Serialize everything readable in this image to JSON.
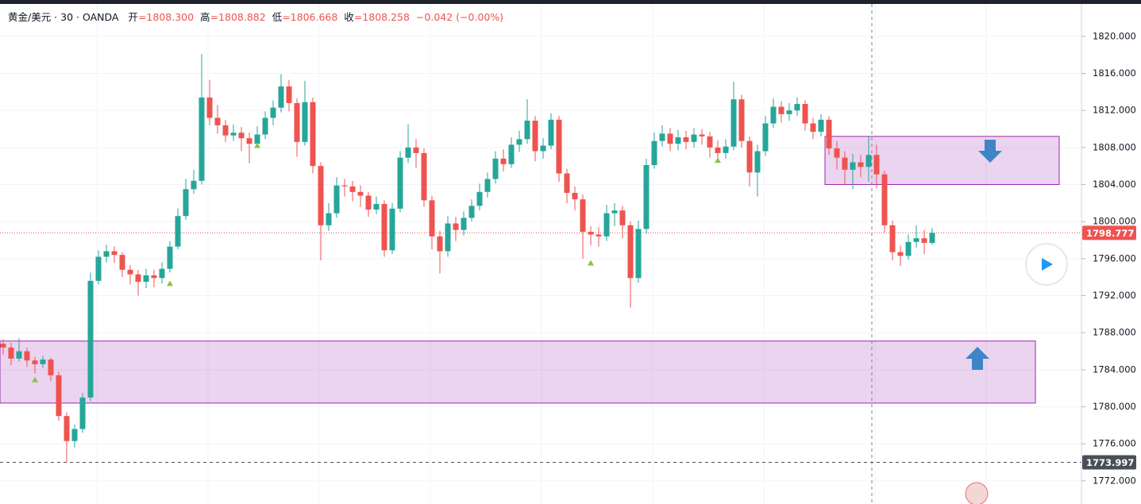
{
  "chart_data": {
    "type": "candlestick",
    "header": {
      "symbol": "黄金/美元 · 30 · OANDA",
      "fields": [
        {
          "name": "开",
          "text": "=1808.300"
        },
        {
          "name": "高",
          "text": "=1808.882"
        },
        {
          "name": "低",
          "text": "=1806.668"
        },
        {
          "name": "收",
          "text": "=1808.258"
        }
      ],
      "change": "−0.042 (−0.00%)"
    },
    "up_color": "#26a69a",
    "down_color": "#ef5350",
    "open": [
      1786.8,
      1786.4,
      1785.2,
      1786.0,
      1785.0,
      1784.6,
      1785.1,
      1783.4,
      1779.0,
      1776.3,
      1777.6,
      1781.0,
      1793.6,
      1796.2,
      1796.8,
      1796.4,
      1794.8,
      1794.3,
      1793.5,
      1794.2,
      1793.9,
      1794.9,
      1797.3,
      1800.6,
      1803.5,
      1804.4,
      1813.4,
      1811.2,
      1810.4,
      1809.3,
      1809.6,
      1809.0,
      1808.4,
      1809.4,
      1811.2,
      1812.3,
      1814.6,
      1812.8,
      1808.6,
      1812.9,
      1806.0,
      1799.6,
      1800.9,
      1803.9,
      1803.8,
      1803.2,
      1802.8,
      1801.3,
      1801.9,
      1796.9,
      1801.4,
      1806.9,
      1808.0,
      1807.4,
      1802.3,
      1798.4,
      1796.8,
      1799.8,
      1799.1,
      1800.4,
      1801.7,
      1803.2,
      1804.6,
      1806.8,
      1806.2,
      1808.3,
      1808.9,
      1810.9,
      1807.6,
      1808.2,
      1811.0,
      1805.2,
      1803.1,
      1802.4,
      1798.9,
      1798.6,
      1798.4,
      1800.9,
      1801.2,
      1799.6,
      1793.9,
      1799.2,
      1806.1,
      1808.7,
      1809.5,
      1808.4,
      1809.1,
      1808.6,
      1809.4,
      1809.2,
      1808.0,
      1807.4,
      1808.1,
      1813.2,
      1808.7,
      1805.3,
      1807.6,
      1810.6,
      1812.4,
      1811.6,
      1812.0,
      1812.7,
      1810.6,
      1809.7,
      1811.0,
      1807.9,
      1806.9,
      1805.6,
      1806.4,
      1805.9,
      1807.2,
      1805.1,
      1799.6,
      1796.7,
      1796.3,
      1797.8,
      1798.2,
      1797.7
    ],
    "high": [
      1787.3,
      1786.9,
      1787.4,
      1786.4,
      1785.4,
      1785.5,
      1785.3,
      1783.8,
      1779.4,
      1778.1,
      1781.5,
      1794.5,
      1796.9,
      1797.5,
      1797.3,
      1796.7,
      1795.3,
      1794.8,
      1794.9,
      1794.8,
      1795.6,
      1797.9,
      1801.4,
      1804.6,
      1805.6,
      1818.1,
      1815.3,
      1812.6,
      1811.0,
      1810.5,
      1810.2,
      1809.6,
      1810.3,
      1811.9,
      1813.1,
      1815.9,
      1815.3,
      1813.3,
      1815.2,
      1813.4,
      1806.4,
      1802.0,
      1804.8,
      1804.6,
      1804.4,
      1803.9,
      1803.2,
      1802.7,
      1802.3,
      1802.0,
      1807.6,
      1810.5,
      1808.9,
      1807.9,
      1802.8,
      1799.0,
      1800.6,
      1800.5,
      1801.1,
      1802.4,
      1804.1,
      1805.3,
      1807.6,
      1807.8,
      1809.1,
      1809.8,
      1813.2,
      1811.4,
      1809.0,
      1811.7,
      1811.4,
      1805.7,
      1803.8,
      1802.9,
      1799.5,
      1799.4,
      1801.8,
      1802.0,
      1801.7,
      1800.0,
      1800.1,
      1806.8,
      1809.6,
      1810.4,
      1810.1,
      1809.9,
      1809.8,
      1810.1,
      1810.0,
      1809.7,
      1808.8,
      1808.9,
      1815.1,
      1813.7,
      1809.2,
      1808.3,
      1811.4,
      1813.3,
      1813.0,
      1812.8,
      1813.4,
      1813.1,
      1811.2,
      1811.6,
      1811.4,
      1808.7,
      1807.6,
      1807.3,
      1807.2,
      1809.2,
      1808.3,
      1805.5,
      1800.1,
      1797.4,
      1798.6,
      1799.6,
      1799.1,
      1799.3
    ],
    "low": [
      1785.6,
      1784.5,
      1784.9,
      1784.3,
      1783.6,
      1784.2,
      1782.8,
      1778.5,
      1773.997,
      1775.6,
      1777.2,
      1780.6,
      1793.2,
      1795.6,
      1795.5,
      1794.0,
      1793.2,
      1792.0,
      1792.8,
      1792.9,
      1793.3,
      1794.5,
      1797.0,
      1800.2,
      1803.0,
      1804.0,
      1810.4,
      1809.5,
      1808.6,
      1808.7,
      1807.6,
      1806.3,
      1808.0,
      1808.9,
      1810.4,
      1811.8,
      1811.9,
      1807.0,
      1808.2,
      1805.2,
      1795.8,
      1799.0,
      1800.4,
      1802.7,
      1802.2,
      1801.6,
      1800.5,
      1800.8,
      1796.2,
      1796.5,
      1801.0,
      1806.3,
      1805.8,
      1801.6,
      1797.0,
      1794.4,
      1796.2,
      1797.9,
      1798.5,
      1800.0,
      1801.2,
      1802.6,
      1804.1,
      1805.4,
      1805.8,
      1807.5,
      1808.4,
      1806.5,
      1806.8,
      1807.8,
      1804.3,
      1802.0,
      1801.2,
      1796.0,
      1797.4,
      1797.3,
      1797.9,
      1799.5,
      1798.2,
      1790.7,
      1793.4,
      1798.7,
      1805.7,
      1808.1,
      1807.6,
      1807.7,
      1807.8,
      1808.0,
      1808.3,
      1806.9,
      1806.6,
      1806.8,
      1807.7,
      1808.0,
      1803.8,
      1802.7,
      1807.1,
      1810.1,
      1810.7,
      1810.9,
      1811.4,
      1809.8,
      1808.9,
      1809.2,
      1807.2,
      1805.6,
      1804.0,
      1803.5,
      1804.8,
      1804.3,
      1803.6,
      1798.8,
      1795.8,
      1795.2,
      1795.9,
      1797.2,
      1796.5,
      1797.5
    ],
    "close": [
      1786.4,
      1785.2,
      1786.0,
      1785.0,
      1784.6,
      1785.1,
      1783.4,
      1779.0,
      1776.3,
      1777.6,
      1781.0,
      1793.6,
      1796.2,
      1796.8,
      1796.4,
      1794.8,
      1794.3,
      1793.5,
      1794.2,
      1793.9,
      1794.9,
      1797.3,
      1800.6,
      1803.5,
      1804.4,
      1813.4,
      1811.2,
      1810.4,
      1809.3,
      1809.6,
      1809.0,
      1808.4,
      1809.4,
      1811.2,
      1812.3,
      1814.6,
      1812.8,
      1808.6,
      1812.9,
      1806.0,
      1799.6,
      1800.9,
      1803.9,
      1803.8,
      1803.2,
      1802.8,
      1801.3,
      1801.9,
      1796.9,
      1801.4,
      1806.9,
      1808.0,
      1807.4,
      1802.3,
      1798.4,
      1796.8,
      1799.8,
      1799.1,
      1800.4,
      1801.7,
      1803.2,
      1804.6,
      1806.8,
      1806.2,
      1808.3,
      1808.9,
      1810.9,
      1807.6,
      1808.2,
      1811.0,
      1805.2,
      1803.1,
      1802.4,
      1798.9,
      1798.6,
      1798.4,
      1800.9,
      1801.2,
      1799.6,
      1793.9,
      1799.2,
      1806.1,
      1808.7,
      1809.5,
      1808.4,
      1809.1,
      1808.6,
      1809.4,
      1809.2,
      1808.0,
      1807.4,
      1808.1,
      1813.2,
      1808.7,
      1805.3,
      1807.6,
      1810.6,
      1812.4,
      1811.6,
      1812.0,
      1812.7,
      1810.6,
      1809.7,
      1811.0,
      1807.9,
      1806.9,
      1805.6,
      1806.4,
      1805.9,
      1807.2,
      1805.1,
      1799.6,
      1796.7,
      1796.3,
      1797.8,
      1798.2,
      1797.7,
      1798.777
    ],
    "ylim": [
      1769.5,
      1823.5
    ],
    "yticks": [
      {
        "value": 1772,
        "label": "1772.000"
      },
      {
        "value": 1776,
        "label": "1776.000"
      },
      {
        "value": 1780,
        "label": "1780.000"
      },
      {
        "value": 1784,
        "label": "1784.000"
      },
      {
        "value": 1788,
        "label": "1788.000"
      },
      {
        "value": 1792,
        "label": "1792.000"
      },
      {
        "value": 1796,
        "label": "1796.000"
      },
      {
        "value": 1800,
        "label": "1800.000"
      },
      {
        "value": 1804,
        "label": "1804.000"
      },
      {
        "value": 1808,
        "label": "1808.000"
      },
      {
        "value": 1812,
        "label": "1812.000"
      },
      {
        "value": 1816,
        "label": "1816.000"
      },
      {
        "value": 1820,
        "label": "1820.000"
      }
    ],
    "grid": true,
    "price_lines": [
      {
        "value": 1798.777,
        "label": "1798.777",
        "color": "#ef5350",
        "style": "dotted"
      },
      {
        "value": 1773.997,
        "label": "1773.997",
        "color": "#4a4e59",
        "style": "dashed"
      }
    ],
    "zones": [
      {
        "top": 1809.2,
        "bottom": 1804.0,
        "from_bar": 104,
        "to_bar": 133,
        "color": "#9c27b0"
      },
      {
        "top": 1787.1,
        "bottom": 1780.4,
        "from_bar": 0,
        "to_bar": 130,
        "color": "#9c27b0"
      }
    ],
    "signals": [
      {
        "bar": 4,
        "price": 1782.9
      },
      {
        "bar": 21,
        "price": 1793.3
      },
      {
        "bar": 32,
        "price": 1808.2
      },
      {
        "bar": 74,
        "price": 1795.5
      },
      {
        "bar": 90,
        "price": 1806.6
      }
    ]
  }
}
